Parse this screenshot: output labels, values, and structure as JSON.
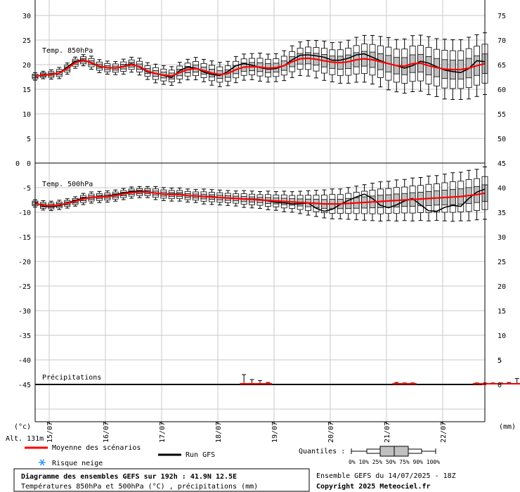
{
  "chart_data": {
    "type": "box",
    "panels": [
      {
        "label": "Temp. 850hPa",
        "left_ticks": [
          "30",
          "25",
          "20",
          "15",
          "10",
          "5",
          "0"
        ],
        "right_ticks": [
          "75",
          "70",
          "65",
          "60",
          "55",
          "50"
        ],
        "left_range": [
          0,
          30
        ],
        "mean": [
          17.6,
          17.9,
          18.0,
          18.3,
          19.2,
          20.4,
          20.9,
          20.4,
          19.7,
          19.4,
          19.3,
          19.6,
          20.0,
          19.6,
          18.7,
          18.2,
          17.9,
          17.7,
          18.4,
          19.0,
          19.2,
          18.8,
          18.3,
          18.0,
          18.2,
          19.0,
          19.5,
          19.6,
          19.5,
          19.3,
          19.4,
          19.8,
          20.6,
          21.2,
          21.3,
          21.1,
          20.8,
          20.5,
          20.4,
          20.6,
          21.0,
          21.2,
          21.0,
          20.6,
          20.2,
          19.8,
          19.7,
          20.2,
          20.3,
          19.8,
          19.4,
          19.1,
          19.0,
          19.0,
          19.3,
          19.8,
          20.2
        ],
        "gfs": [
          17.6,
          17.9,
          18.1,
          18.3,
          19.5,
          20.7,
          21.0,
          20.3,
          19.6,
          19.4,
          19.3,
          19.7,
          20.2,
          19.5,
          18.5,
          18.2,
          17.8,
          17.4,
          18.8,
          19.5,
          19.3,
          18.5,
          18.0,
          17.8,
          18.6,
          19.8,
          20.2,
          19.9,
          19.4,
          19.1,
          19.2,
          19.8,
          21.0,
          21.9,
          22.0,
          21.8,
          21.5,
          20.9,
          20.9,
          21.3,
          22.0,
          22.2,
          21.5,
          20.8,
          20.2,
          19.8,
          19.3,
          19.8,
          20.7,
          20.3,
          19.6,
          18.9,
          18.6,
          18.4,
          19.2,
          20.8,
          20.6
        ],
        "box_spread": [
          0.4,
          0.4,
          0.5,
          0.6,
          0.6,
          0.6,
          0.6,
          0.7,
          0.7,
          0.7,
          0.7,
          0.8,
          0.8,
          0.9,
          0.9,
          1.0,
          1.0,
          1.0,
          1.1,
          1.1,
          1.2,
          1.2,
          1.3,
          1.3,
          1.3,
          1.4,
          1.4,
          1.4,
          1.5,
          1.5,
          1.5,
          1.6,
          1.7,
          1.8,
          1.9,
          2.0,
          2.1,
          2.1,
          2.2,
          2.3,
          2.4,
          2.5,
          2.6,
          2.7,
          2.8,
          2.8,
          2.9,
          3.0,
          3.0,
          3.1,
          3.1,
          3.2,
          3.2,
          3.2,
          3.3,
          3.3,
          3.3
        ]
      },
      {
        "label": "Temp. 500hPa",
        "left_ticks": [
          "0",
          "-5",
          "-10",
          "-15",
          "-20",
          "-25",
          "-30",
          "-35",
          "-40",
          "-45"
        ],
        "right_ticks": [
          "45",
          "40",
          "35",
          "30",
          "25",
          "20",
          "15",
          "10",
          "5",
          "0"
        ],
        "left_range": [
          -45,
          0
        ],
        "mean": [
          -8.2,
          -8.6,
          -8.7,
          -8.5,
          -8.2,
          -7.8,
          -7.3,
          -7.0,
          -6.9,
          -6.8,
          -6.6,
          -6.3,
          -6.0,
          -5.9,
          -5.9,
          -6.1,
          -6.3,
          -6.4,
          -6.4,
          -6.6,
          -6.7,
          -6.8,
          -6.9,
          -7.0,
          -7.1,
          -7.2,
          -7.3,
          -7.4,
          -7.5,
          -7.6,
          -7.7,
          -7.8,
          -7.9,
          -8.0,
          -8.1,
          -8.2,
          -8.3,
          -8.3,
          -8.3,
          -8.2,
          -8.1,
          -8.0,
          -7.9,
          -7.8,
          -7.7,
          -7.6,
          -7.5,
          -7.4,
          -7.3,
          -7.2,
          -7.1,
          -7.0,
          -6.9,
          -6.8,
          -6.6,
          -6.4,
          -6.1
        ],
        "gfs": [
          -8.0,
          -8.8,
          -8.9,
          -8.7,
          -8.1,
          -7.6,
          -7.1,
          -7.0,
          -6.8,
          -6.7,
          -6.4,
          -6.1,
          -5.8,
          -5.7,
          -5.8,
          -6.1,
          -6.3,
          -6.3,
          -6.3,
          -6.6,
          -6.7,
          -6.8,
          -6.8,
          -7.0,
          -7.1,
          -7.2,
          -7.3,
          -7.3,
          -7.4,
          -7.7,
          -8.0,
          -8.1,
          -8.3,
          -8.3,
          -8.1,
          -9.2,
          -9.8,
          -9.4,
          -8.4,
          -7.6,
          -6.9,
          -6.3,
          -7.2,
          -8.6,
          -9.1,
          -8.5,
          -7.7,
          -7.2,
          -8.5,
          -9.7,
          -9.8,
          -9.0,
          -8.6,
          -8.8,
          -7.2,
          -5.9,
          -5.3
        ],
        "box_spread": [
          0.4,
          0.5,
          0.5,
          0.5,
          0.5,
          0.5,
          0.6,
          0.6,
          0.6,
          0.6,
          0.6,
          0.6,
          0.6,
          0.6,
          0.6,
          0.7,
          0.7,
          0.7,
          0.7,
          0.7,
          0.7,
          0.8,
          0.8,
          0.8,
          0.8,
          0.8,
          0.9,
          0.9,
          0.9,
          1.0,
          1.0,
          1.1,
          1.1,
          1.2,
          1.3,
          1.4,
          1.5,
          1.6,
          1.6,
          1.7,
          1.8,
          1.9,
          2.0,
          2.1,
          2.1,
          2.2,
          2.2,
          2.3,
          2.3,
          2.4,
          2.4,
          2.5,
          2.6,
          2.6,
          2.7,
          2.7,
          2.8
        ]
      },
      {
        "label": "Précipitations",
        "left_value": "-45",
        "right_value": "0",
        "right_ticks_upper": [
          "5"
        ],
        "events": [
          {
            "index": 26,
            "spike": 2.0
          },
          {
            "index": 27,
            "spike": 1.0
          },
          {
            "index": 28,
            "spike": 0.8
          },
          {
            "index": 29,
            "spike": 0.4
          },
          {
            "index": 45,
            "spike": 0.4
          },
          {
            "index": 46,
            "spike": 0.3
          },
          {
            "index": 47,
            "spike": 0.3
          },
          {
            "index": 55,
            "spike": 0.3
          },
          {
            "index": 56,
            "spike": 0.3
          },
          {
            "index": 57,
            "spike": 0.3
          },
          {
            "index": 58,
            "spike": 0.3
          },
          {
            "index": 59,
            "spike": 0.4
          },
          {
            "index": 60,
            "spike": 1.2
          },
          {
            "index": 61,
            "spike": 0.6
          },
          {
            "index": 62,
            "spike": 0.4
          }
        ]
      }
    ],
    "x_labels": [
      "15/07",
      "16/07",
      "17/07",
      "18/07",
      "19/07",
      "20/07",
      "21/07",
      "22/07"
    ],
    "x_start_date": "14/07"
  },
  "labels": {
    "unit_left": "(°c)",
    "unit_right": "(mm)",
    "altitude": "Alt. 131m",
    "legend_mean": "Moyenne des scénarios",
    "legend_gfs": "Run GFS",
    "legend_snow": "Risque neige",
    "quantiles": "Quantiles :",
    "quantile_ticks": "0%  10% 25% 50% 75% 90% 100%",
    "title": "Diagramme des ensembles GEFS sur 192h : 41.9N 12.5E",
    "subtitle": "Températures 850hPa et 500hPa (°C) , précipitations (mm)",
    "run_info": "Ensemble GEFS du 14/07/2025 - 18Z",
    "copyright": "Copyright 2025 Meteociel.fr"
  },
  "colors": {
    "mean": "#ff0000",
    "gfs": "#000000",
    "box": "#c0c0c0",
    "grid": "#c8c8c8",
    "snow": "#3399ff"
  }
}
